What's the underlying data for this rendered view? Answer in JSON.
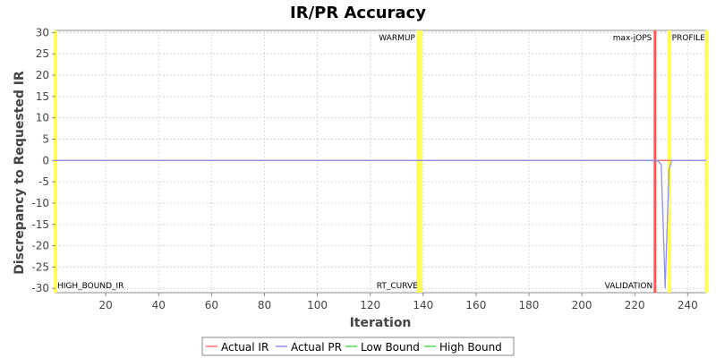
{
  "chart_data": {
    "type": "line",
    "title": "IR/PR Accuracy",
    "xlabel": "Iteration",
    "ylabel": "Discrepancy to Requested IR",
    "xlim": [
      1,
      247
    ],
    "ylim": [
      -31,
      30.5
    ],
    "xticks": [
      20,
      40,
      60,
      80,
      100,
      120,
      140,
      160,
      180,
      200,
      220,
      240
    ],
    "yticks": [
      30,
      25,
      20,
      15,
      10,
      5,
      0,
      -5,
      -10,
      -15,
      -20,
      -25,
      -30
    ],
    "grid": true,
    "legend_position": "bottom",
    "series": [
      {
        "name": "Actual IR",
        "color": "#ff6f6f",
        "points": [
          [
            1,
            0
          ],
          [
            247,
            0
          ]
        ]
      },
      {
        "name": "Actual PR",
        "color": "#8f8fef",
        "points": [
          [
            1,
            0
          ],
          [
            227,
            0
          ],
          [
            228,
            0
          ],
          [
            229,
            -0.2
          ],
          [
            230,
            -1
          ],
          [
            231,
            -20
          ],
          [
            231.5,
            -30
          ],
          [
            232,
            -20
          ],
          [
            233,
            -2
          ],
          [
            234,
            0
          ],
          [
            247,
            0
          ]
        ]
      },
      {
        "name": "Low Bound",
        "color": "#55dd55",
        "points": [
          [
            1,
            0
          ],
          [
            247,
            0
          ]
        ]
      },
      {
        "name": "High Bound",
        "color": "#55dd55",
        "points": [
          [
            1,
            0
          ],
          [
            247,
            0
          ]
        ]
      }
    ],
    "markers": [
      {
        "label": "HIGH_BOUND_IR",
        "x": 1,
        "color": "#ffff55",
        "label_pos": "bottom"
      },
      {
        "label": "WARMUP",
        "x": 138,
        "color": "#ffff55",
        "label_pos": "top"
      },
      {
        "label": "RT_CURVE",
        "x": 139,
        "color": "#ffff55",
        "label_pos": "bottom"
      },
      {
        "label": "max-jOPS",
        "x": 227.5,
        "color": "#ff5555",
        "label_pos": "top"
      },
      {
        "label": "VALIDATION",
        "x": 227.8,
        "color": "#ff5555",
        "label_pos": "bottom"
      },
      {
        "label": "PROFILE",
        "x": 233,
        "color": "#ffff55",
        "label_pos": "top"
      },
      {
        "label": "",
        "x": 247,
        "color": "#ffff55",
        "label_pos": "none"
      }
    ]
  }
}
